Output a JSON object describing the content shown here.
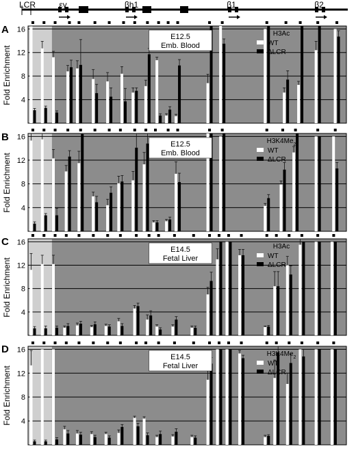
{
  "locus_map": {
    "labels": [
      "LCR",
      "εy",
      "βh1",
      "β1",
      "β2"
    ]
  },
  "colors": {
    "panel_bg": "#8c8c8c",
    "lcr_region_bg": "#cfcfcf",
    "grid": "#000000",
    "wt": "#ffffff",
    "dlcr": "#000000",
    "error": "#111111",
    "label_box": "#ffffff"
  },
  "chart_data": [
    {
      "panel": "A",
      "type": "bar",
      "ylabel": "Fold Enrichment",
      "yticks": [
        4,
        8,
        12,
        16
      ],
      "ylim": [
        0,
        16.5
      ],
      "condition": [
        "E12.5",
        "Emb. Blood"
      ],
      "legend_title": "H3Ac",
      "legend": [
        "WT",
        "ΔLCR"
      ],
      "grid": true,
      "site_positions": [
        0.015,
        0.05,
        0.085,
        0.13,
        0.16,
        0.21,
        0.255,
        0.3,
        0.335,
        0.375,
        0.41,
        0.44,
        0.47,
        0.57,
        0.61,
        0.75,
        0.81,
        0.855,
        0.91,
        0.97
      ],
      "wt": [
        17,
        12.7,
        11.2,
        8.8,
        9.3,
        7.5,
        7.1,
        8.4,
        5.2,
        6.3,
        10.7,
        1.3,
        1.2,
        6.8,
        17,
        16,
        5.2,
        6.5,
        12.4,
        16
      ],
      "wt_err": [
        1.8,
        1.2,
        1,
        1,
        1.3,
        1.6,
        1.5,
        1.2,
        0.8,
        1,
        0.5,
        0.3,
        0.3,
        1.5,
        0,
        0,
        0.8,
        0.6,
        1.5,
        0
      ],
      "dlcr": [
        2.2,
        2.6,
        1.8,
        9.5,
        9.9,
        5.1,
        4.5,
        3.7,
        5.5,
        11.7,
        1.3,
        2.3,
        9.8,
        17,
        13.5,
        17,
        7.4,
        17,
        17,
        14.7
      ],
      "dlcr_err": [
        0.3,
        0.3,
        0.3,
        1.2,
        4.3,
        1.5,
        1.5,
        2.2,
        0.5,
        1,
        0.3,
        0.5,
        1,
        0,
        0.8,
        0,
        1.5,
        0,
        0,
        1
      ]
    },
    {
      "panel": "B",
      "type": "bar",
      "ylabel": "Fold Enrichment",
      "yticks": [
        4,
        8,
        12,
        16
      ],
      "ylim": [
        0,
        16.5
      ],
      "condition": [
        "E12.5",
        "Emb. Blood"
      ],
      "legend_title": "H3K4Me",
      "legend_title_sub": "2",
      "legend": [
        "WT",
        "ΔLCR"
      ],
      "grid": true,
      "site_positions": [
        0.015,
        0.05,
        0.085,
        0.125,
        0.165,
        0.21,
        0.255,
        0.29,
        0.335,
        0.37,
        0.4,
        0.44,
        0.47,
        0.57,
        0.61,
        0.75,
        0.8,
        0.84,
        0.91,
        0.965
      ],
      "wt": [
        15.3,
        15.5,
        12.3,
        10.1,
        11.5,
        5.9,
        4.4,
        8.1,
        8.6,
        11.3,
        1.5,
        1.7,
        9.7,
        17,
        16,
        4.3,
        7.9,
        13.3,
        16,
        16
      ],
      "wt_err": [
        1.2,
        1.2,
        1.5,
        1,
        2,
        0.7,
        1,
        1.2,
        1.5,
        2,
        0.3,
        0.3,
        2,
        0,
        0,
        0.4,
        0.6,
        1,
        0,
        0
      ],
      "dlcr": [
        1.3,
        2.7,
        2.7,
        12.6,
        16.4,
        4.9,
        6.5,
        8.4,
        14.1,
        14.8,
        1.5,
        2,
        8.3,
        17,
        17,
        5.6,
        10.4,
        17,
        16,
        10.6
      ],
      "dlcr_err": [
        0.3,
        0.3,
        1.2,
        1,
        0.8,
        1,
        1,
        1,
        2.5,
        2,
        0.3,
        0.4,
        1.5,
        0,
        0,
        0.6,
        1.2,
        0,
        0,
        1
      ]
    },
    {
      "panel": "C",
      "type": "bar",
      "ylabel": "Fold Enrichment",
      "yticks": [
        4,
        8,
        12,
        16
      ],
      "ylim": [
        0,
        16.5
      ],
      "condition": [
        "E14.5",
        "Fetal Liver"
      ],
      "legend_title": "H3Ac",
      "legend": [
        "WT",
        "ΔLCR"
      ],
      "grid": true,
      "site_positions": [
        0.015,
        0.05,
        0.085,
        0.12,
        0.16,
        0.205,
        0.25,
        0.29,
        0.34,
        0.38,
        0.41,
        0.46,
        0.52,
        0.57,
        0.6,
        0.63,
        0.67,
        0.75,
        0.78,
        0.82,
        0.86,
        0.91,
        0.96
      ],
      "wt": [
        11.2,
        12.2,
        12.2,
        1.3,
        1.7,
        1.4,
        1.6,
        2.4,
        4.6,
        2.7,
        1.5,
        1.5,
        1.3,
        7,
        13,
        16,
        13.7,
        1.4,
        8.4,
        12,
        15.5,
        16,
        16
      ],
      "wt_err": [
        2.8,
        1.5,
        1.5,
        0.3,
        0.4,
        0.3,
        0.3,
        0.5,
        0.5,
        0.8,
        0.3,
        0.3,
        0.3,
        1.2,
        1.8,
        0,
        1,
        0.2,
        2.5,
        1.5,
        1,
        0,
        0
      ],
      "dlcr": [
        1.2,
        1.2,
        1.3,
        1.6,
        2,
        1.9,
        1.5,
        1.6,
        5,
        3.4,
        1,
        2.7,
        1.3,
        9.3,
        16,
        16,
        13.7,
        1.5,
        8.4,
        10.4,
        16,
        16,
        16
      ],
      "dlcr_err": [
        0.3,
        0.4,
        0.3,
        0.4,
        0.4,
        0.4,
        0.3,
        0.4,
        0.5,
        0.8,
        0.3,
        0.5,
        0.3,
        1.5,
        0,
        0,
        1,
        0.2,
        2.5,
        1.5,
        0,
        0,
        0
      ]
    },
    {
      "panel": "D",
      "type": "bar",
      "ylabel": "Fold Enrichment",
      "yticks": [
        4,
        8,
        12,
        16
      ],
      "ylim": [
        0,
        16.5
      ],
      "condition": [
        "E14.5",
        "Fetal Liver"
      ],
      "legend_title": "H3K4Me",
      "legend_title_sub": "2",
      "legend": [
        "WT",
        "ΔLCR"
      ],
      "grid": true,
      "site_positions": [
        0.015,
        0.05,
        0.085,
        0.12,
        0.16,
        0.205,
        0.25,
        0.29,
        0.34,
        0.37,
        0.41,
        0.46,
        0.52,
        0.57,
        0.6,
        0.63,
        0.67,
        0.75,
        0.78,
        0.82,
        0.86,
        0.91,
        0.96
      ],
      "wt": [
        13.3,
        16,
        16,
        2.6,
        1.9,
        1.8,
        1.8,
        2,
        4.5,
        4.4,
        1.3,
        1.4,
        1.3,
        10.9,
        16,
        16,
        15.3,
        1.3,
        11.2,
        10.2,
        16,
        16,
        16
      ],
      "wt_err": [
        2.5,
        0,
        0,
        0.5,
        0.5,
        0.4,
        0.3,
        0.5,
        0.3,
        0.3,
        0.3,
        0.3,
        0.3,
        1.5,
        0,
        0,
        0.5,
        0.3,
        3,
        1.8,
        0,
        0,
        0
      ],
      "dlcr": [
        0.6,
        0.6,
        0.9,
        1.9,
        1.7,
        1.3,
        1.2,
        3,
        3.1,
        1.6,
        1.8,
        2.2,
        1.2,
        13.6,
        16,
        16,
        14.5,
        1.5,
        15.5,
        13.7,
        14.8,
        16,
        16
      ],
      "dlcr_err": [
        0.2,
        0.2,
        0.3,
        0.5,
        0.4,
        0.3,
        0.3,
        0.4,
        0.5,
        0.4,
        0.5,
        0.5,
        0.3,
        1,
        0,
        0,
        0.5,
        0.2,
        1,
        1.5,
        1.2,
        0,
        0
      ]
    }
  ]
}
